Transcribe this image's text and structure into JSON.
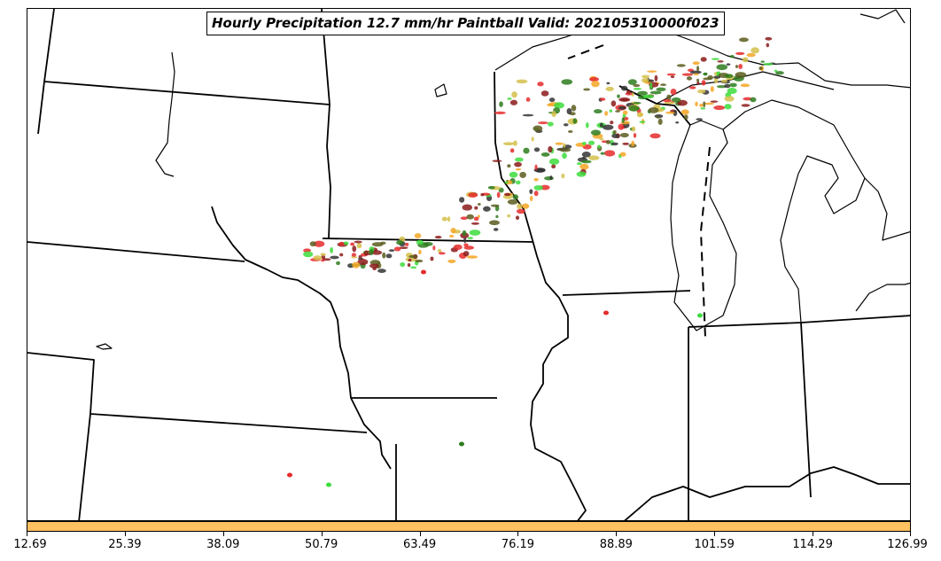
{
  "title": "Hourly Precipitation 12.7 mm/hr Paintball Valid: 202105310000f023",
  "colorbar": {
    "color": "#ffc060",
    "ticks": [
      "12.69",
      "25.39",
      "38.09",
      "50.79",
      "63.49",
      "76.19",
      "88.89",
      "101.59",
      "114.29",
      "126.99"
    ]
  },
  "paintball_colors": [
    "#e52b2b",
    "#3ddc3d",
    "#f5a623",
    "#8b1a1a",
    "#2e7d1e",
    "#5c5c1e",
    "#d4c04a",
    "#333333"
  ]
}
